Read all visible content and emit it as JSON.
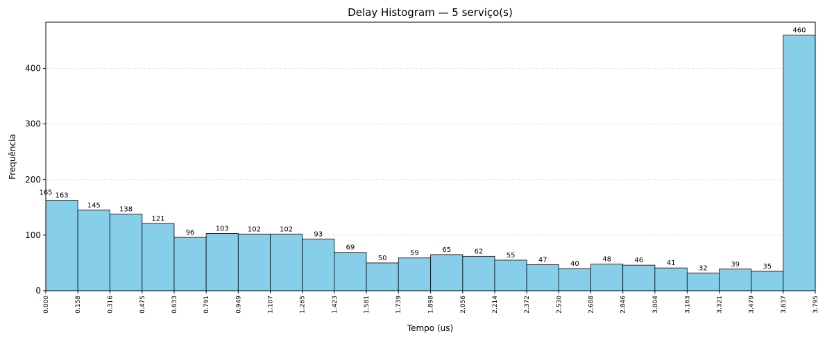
{
  "chart_data": {
    "type": "bar",
    "title": "Delay Histogram — 5 serviço(s)",
    "xlabel": "Tempo (us)",
    "ylabel": "Frequência",
    "ylim": [
      0,
      483
    ],
    "xlim": [
      0,
      3.795
    ],
    "yticks": [
      0,
      100,
      200,
      300,
      400
    ],
    "x_tick_labels": [
      "0.000",
      "0.158",
      "0.316",
      "0.475",
      "0.633",
      "0.791",
      "0.949",
      "1.107",
      "1.265",
      "1.423",
      "1.581",
      "1.739",
      "1.898",
      "2.056",
      "2.214",
      "2.372",
      "2.530",
      "2.688",
      "2.846",
      "3.004",
      "3.163",
      "3.321",
      "3.479",
      "3.637",
      "3.795"
    ],
    "bins": [
      {
        "x0": 0.0,
        "x1": 0.158,
        "value": 163
      },
      {
        "x0": 0.158,
        "x1": 0.316,
        "value": 145
      },
      {
        "x0": 0.316,
        "x1": 0.475,
        "value": 138
      },
      {
        "x0": 0.475,
        "x1": 0.633,
        "value": 121
      },
      {
        "x0": 0.633,
        "x1": 0.791,
        "value": 96
      },
      {
        "x0": 0.791,
        "x1": 0.949,
        "value": 103
      },
      {
        "x0": 0.949,
        "x1": 1.107,
        "value": 102
      },
      {
        "x0": 1.107,
        "x1": 1.265,
        "value": 102
      },
      {
        "x0": 1.265,
        "x1": 1.423,
        "value": 93
      },
      {
        "x0": 1.423,
        "x1": 1.581,
        "value": 69
      },
      {
        "x0": 1.581,
        "x1": 1.739,
        "value": 50
      },
      {
        "x0": 1.739,
        "x1": 1.898,
        "value": 59
      },
      {
        "x0": 1.898,
        "x1": 2.056,
        "value": 65
      },
      {
        "x0": 2.056,
        "x1": 2.214,
        "value": 62
      },
      {
        "x0": 2.214,
        "x1": 2.372,
        "value": 55
      },
      {
        "x0": 2.372,
        "x1": 2.53,
        "value": 47
      },
      {
        "x0": 2.53,
        "x1": 2.688,
        "value": 40
      },
      {
        "x0": 2.688,
        "x1": 2.846,
        "value": 48
      },
      {
        "x0": 2.846,
        "x1": 3.004,
        "value": 46
      },
      {
        "x0": 3.004,
        "x1": 3.163,
        "value": 41
      },
      {
        "x0": 3.163,
        "x1": 3.321,
        "value": 32
      },
      {
        "x0": 3.321,
        "x1": 3.479,
        "value": 39
      },
      {
        "x0": 3.479,
        "x1": 3.637,
        "value": 35
      },
      {
        "x0": 3.637,
        "x1": 3.795,
        "value": 460
      }
    ],
    "edge_annotation": {
      "x": 0.0,
      "text": "165"
    },
    "grid": "y dashed",
    "colors": {
      "bar_fill": "#87ceeb",
      "bar_edge": "#000000",
      "grid": "#d9d9d9"
    }
  }
}
